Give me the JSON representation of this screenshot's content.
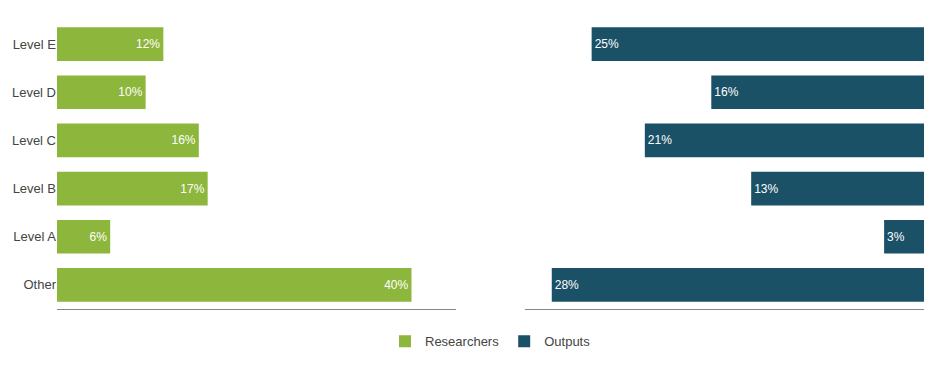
{
  "chart_data": [
    {
      "type": "bar",
      "orientation": "horizontal",
      "categories": [
        "Level E",
        "Level D",
        "Level C",
        "Level B",
        "Level A",
        "Other"
      ],
      "series": [
        {
          "name": "Researchers",
          "color": "#8db63c",
          "values": [
            12,
            10,
            16,
            17,
            6,
            40
          ],
          "value_labels": [
            "12%",
            "10%",
            "16%",
            "17%",
            "6%",
            "40%"
          ]
        }
      ],
      "xlim": [
        0,
        45
      ],
      "data_labels": true,
      "tick_labels": "y",
      "grid": false,
      "legend": "bottom"
    },
    {
      "type": "bar",
      "orientation": "horizontal",
      "categories": [
        "Level E",
        "Level D",
        "Level C",
        "Level B",
        "Level A",
        "Other"
      ],
      "series": [
        {
          "name": "Outputs",
          "color": "#1a5166",
          "values": [
            25,
            16,
            21,
            13,
            3,
            28
          ],
          "value_labels": [
            "25%",
            "16%",
            "21%",
            "13%",
            "3%",
            "28%"
          ]
        }
      ],
      "xlim": [
        30,
        0
      ],
      "data_labels": true,
      "tick_labels": false,
      "grid": false,
      "legend": "bottom"
    }
  ]
}
